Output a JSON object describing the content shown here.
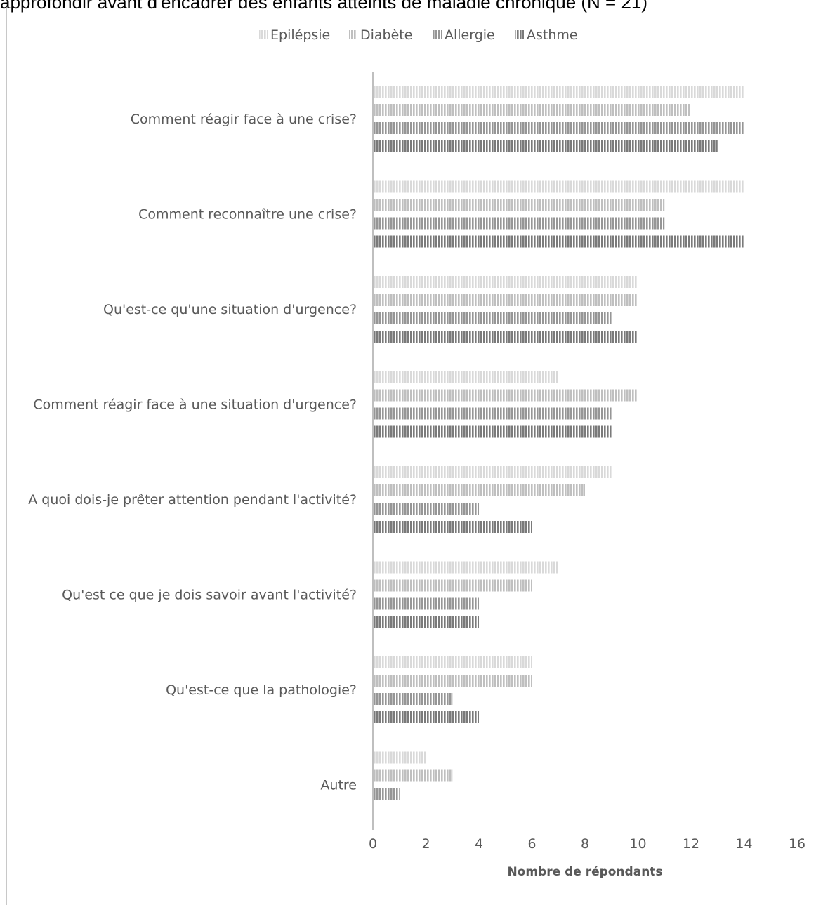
{
  "caption": "approfondir avant d'encadrer des enfants atteints de maladie chronique (N = 21)",
  "chart_data": {
    "type": "bar",
    "orientation": "horizontal",
    "xlabel": "Nombre de répondants",
    "ylabel": "",
    "xlim": [
      0,
      16
    ],
    "xticks": [
      0,
      2,
      4,
      6,
      8,
      10,
      12,
      14,
      16
    ],
    "grid": false,
    "legend_position": "top",
    "categories": [
      "Comment réagir face à une crise?",
      "Comment reconnaître une crise?",
      "Qu'est-ce qu'une situation d'urgence?",
      "Comment réagir face à une situation d'urgence?",
      "A quoi dois-je prêter attention pendant l'activité?",
      "Qu'est ce que je dois savoir avant l'activité?",
      "Qu'est-ce que la pathologie?",
      "Autre"
    ],
    "series": [
      {
        "name": "Epilépsie",
        "color": "#d9d9d9",
        "values": [
          14,
          14,
          10,
          7,
          9,
          7,
          6,
          2
        ]
      },
      {
        "name": "Diabète",
        "color": "#bfbfbf",
        "values": [
          12,
          11,
          10,
          10,
          8,
          6,
          6,
          3
        ]
      },
      {
        "name": "Allergie",
        "color": "#969696",
        "values": [
          14,
          11,
          9,
          9,
          4,
          4,
          3,
          1
        ]
      },
      {
        "name": "Asthme",
        "color": "#7a7a7a",
        "values": [
          13,
          14,
          10,
          9,
          6,
          4,
          4,
          0
        ]
      }
    ]
  }
}
